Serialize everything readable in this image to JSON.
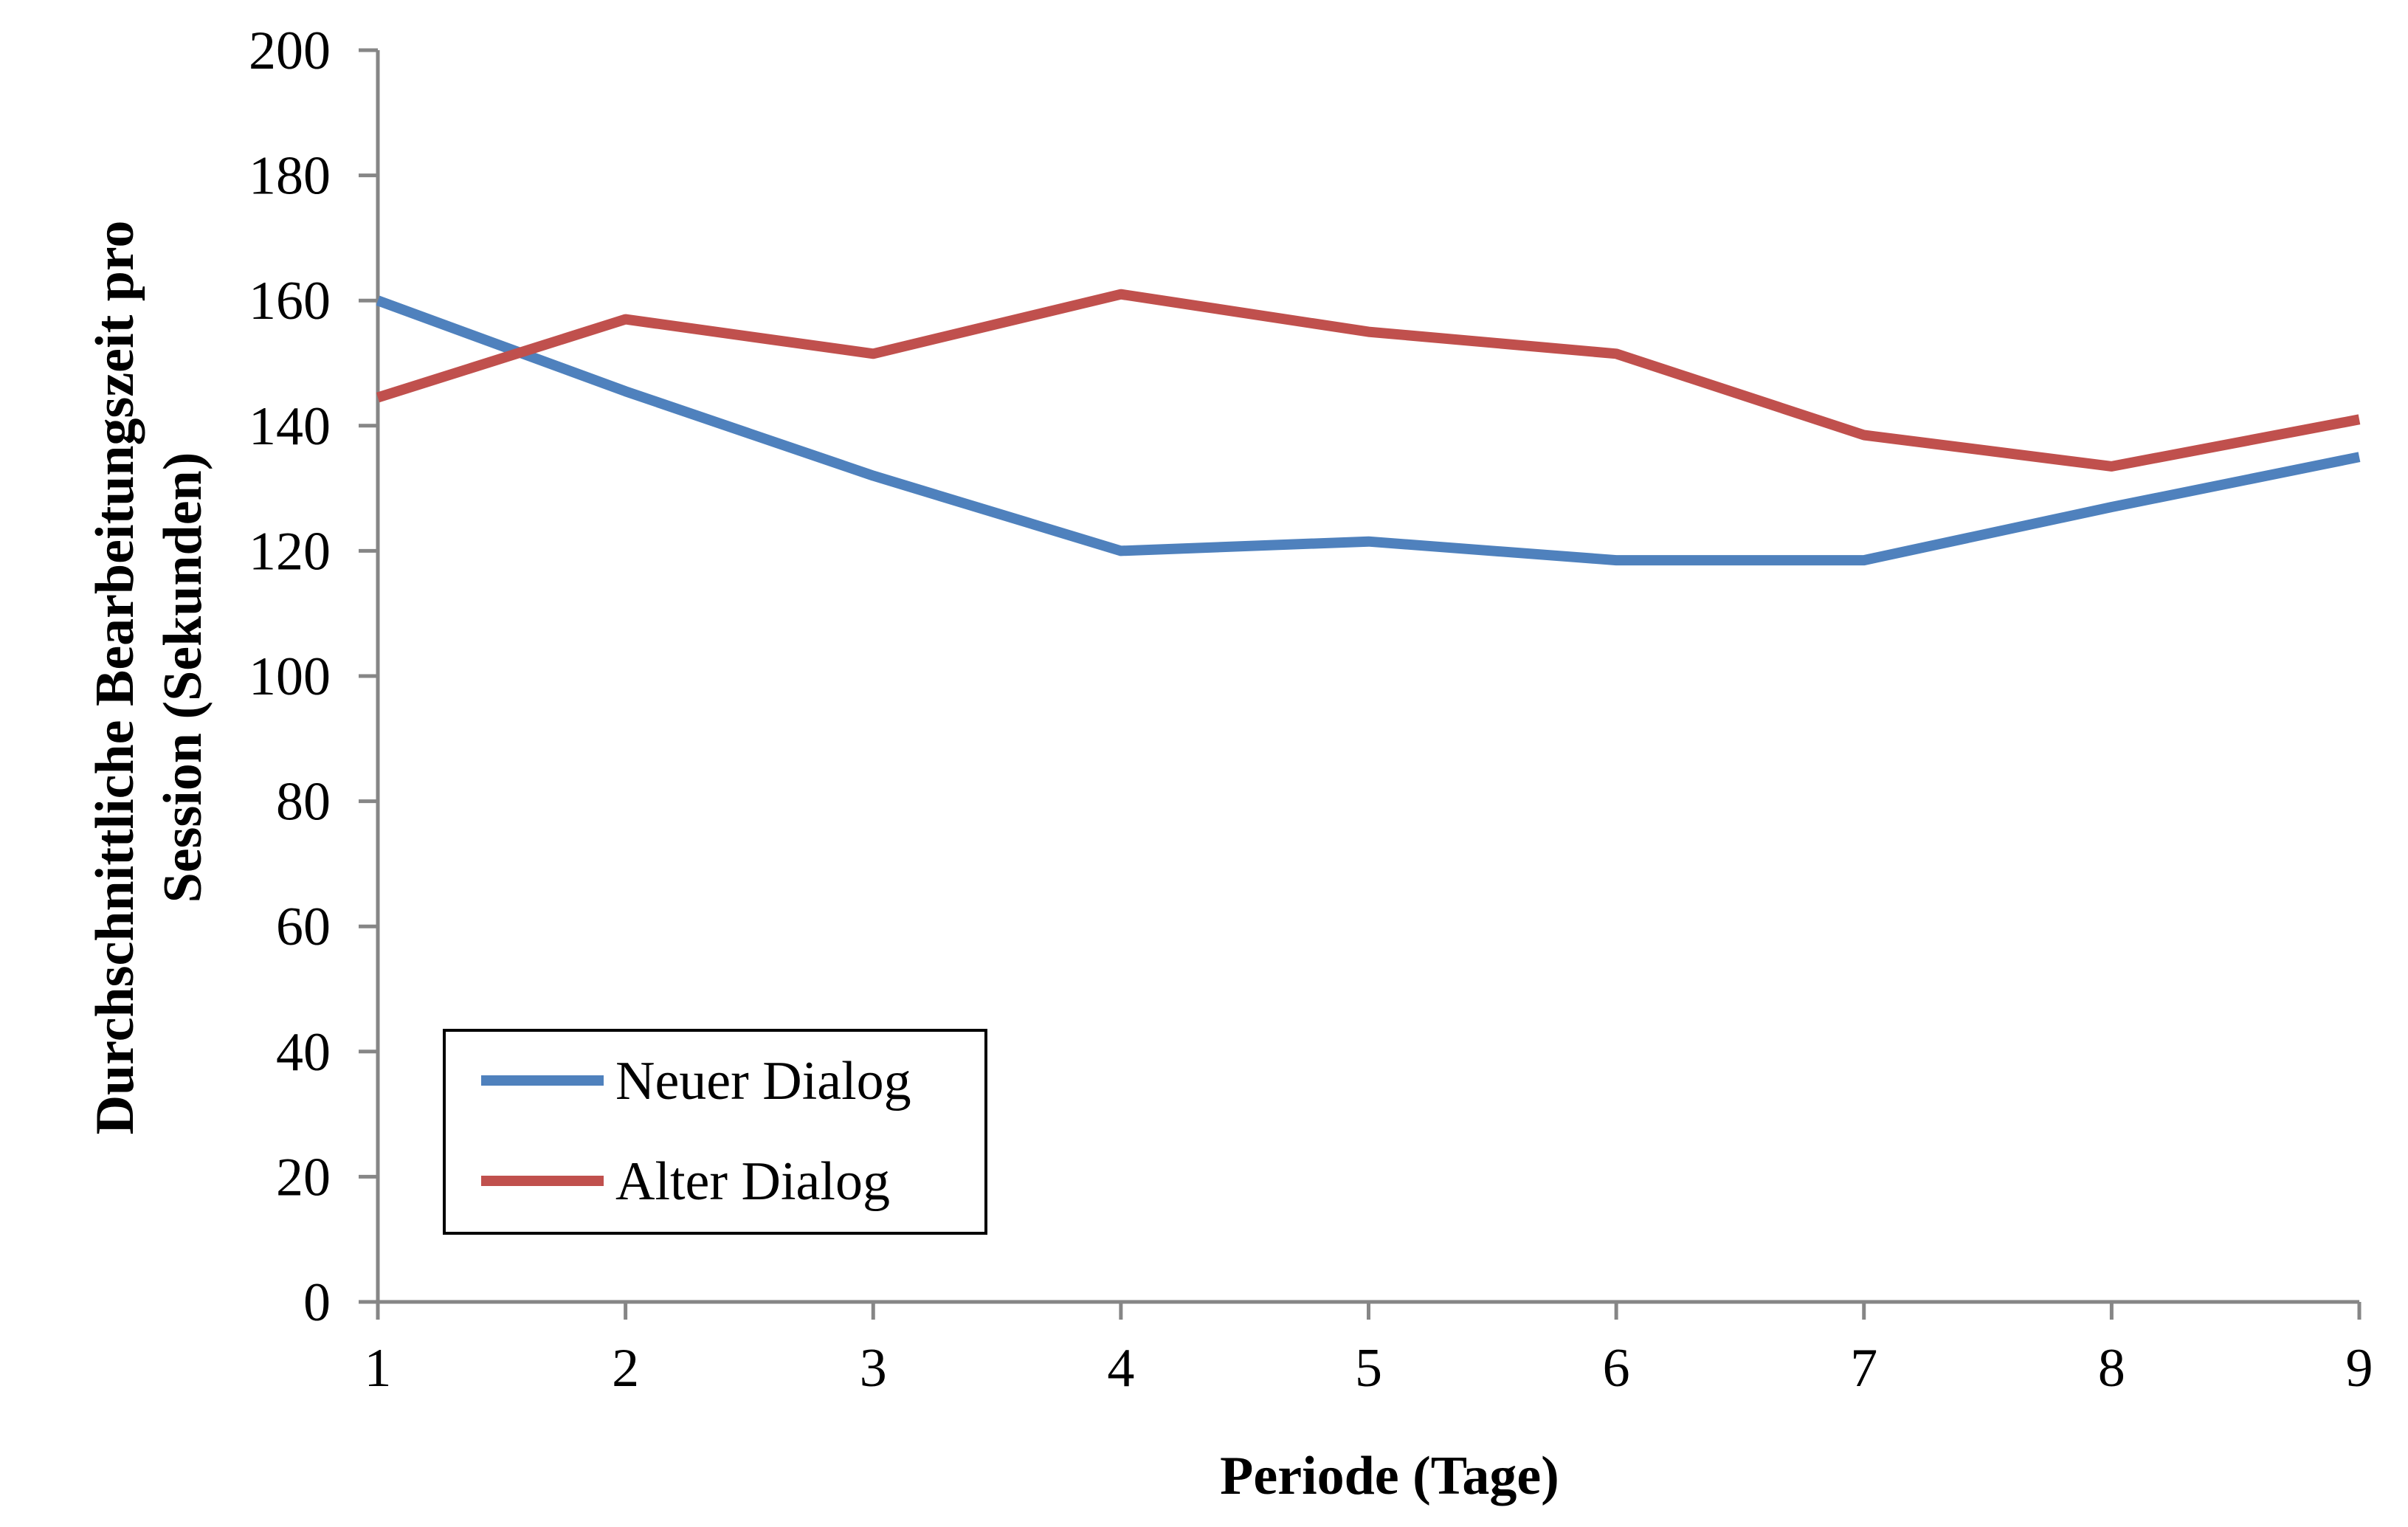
{
  "chart_data": {
    "type": "line",
    "xlabel": "Periode (Tage)",
    "ylabel": [
      "Durchschnittliche Bearbeitungszeit pro",
      "Session (Sekunden)"
    ],
    "x": [
      1,
      2,
      3,
      4,
      5,
      6,
      7,
      8,
      9
    ],
    "xlim": [
      1,
      9
    ],
    "ylim": [
      0,
      200
    ],
    "yticks": [
      0,
      20,
      40,
      60,
      80,
      100,
      120,
      140,
      160,
      180,
      200
    ],
    "grid": false,
    "legend_position": "bottom-left",
    "series": [
      {
        "name": "Neuer Dialog",
        "color": "#4F81BD",
        "values": [
          160,
          145.5,
          132,
          120,
          121.5,
          118.5,
          118.5,
          127,
          135
        ]
      },
      {
        "name": "Alter Dialog",
        "color": "#C0504D",
        "values": [
          144.5,
          157,
          151.5,
          161,
          155,
          151.5,
          138.5,
          133.5,
          141
        ]
      }
    ]
  }
}
